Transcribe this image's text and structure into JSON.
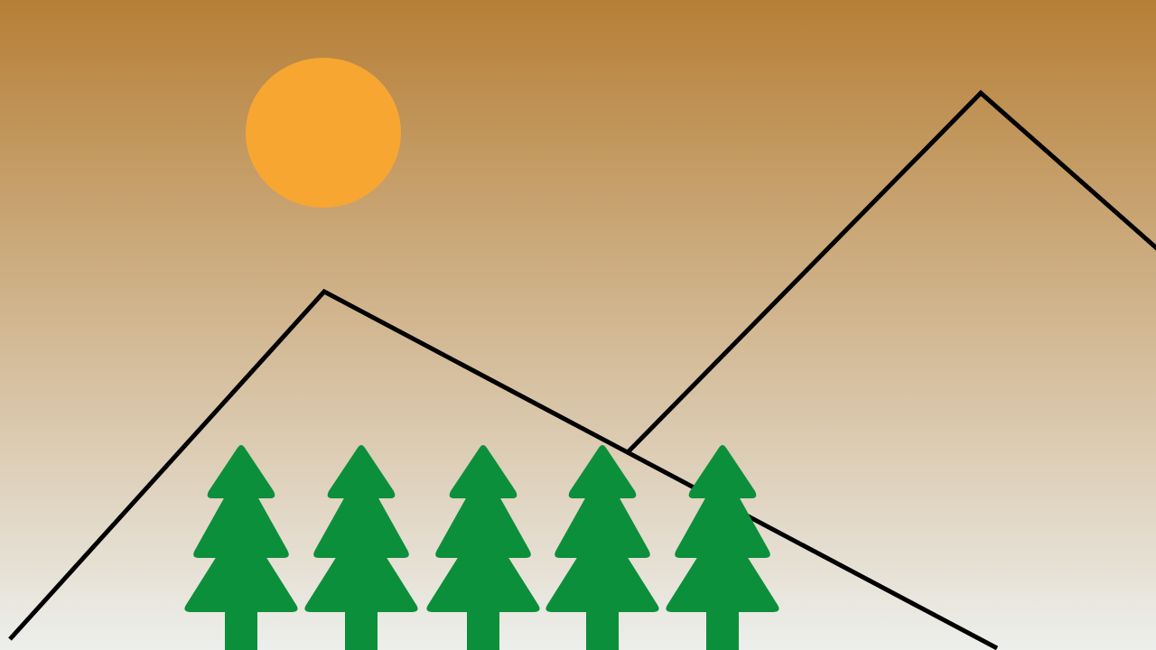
{
  "scene": {
    "colors": {
      "sky_top": "#B67F36",
      "sky_bottom": "#EDEFEC",
      "sun": "#F8A632",
      "mountain_line": "#000000",
      "tree": "#0C8F3A"
    },
    "icons": {
      "sun": "sun-icon",
      "mountain": "mountain-outline",
      "tree": "pine-tree-icon"
    },
    "tree_count": 5
  }
}
